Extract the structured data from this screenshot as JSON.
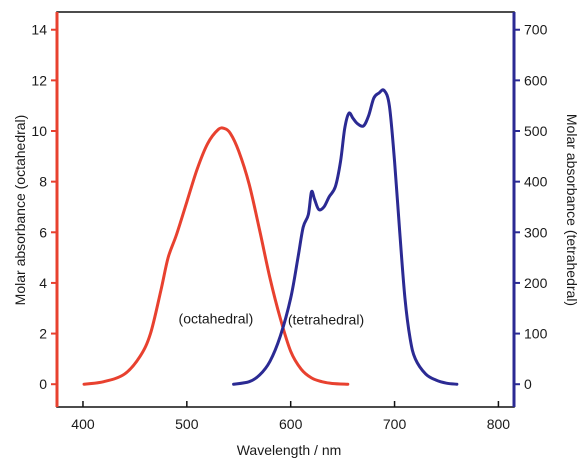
{
  "chart_data": {
    "type": "line",
    "title": "",
    "xlabel": "Wavelength / nm",
    "ylabel_left": "Molar absorbance (octahedral)",
    "ylabel_right": "Molar absorbance (tetrahedral)",
    "xlim": [
      375,
      815
    ],
    "ylim_left": [
      -0.9,
      14.7
    ],
    "ylim_right": [
      -45,
      735
    ],
    "x_ticks": [
      400,
      500,
      600,
      700,
      800
    ],
    "y_left_ticks": [
      0,
      2,
      4,
      6,
      8,
      10,
      12,
      14
    ],
    "y_right_ticks": [
      0,
      100,
      200,
      300,
      400,
      500,
      600,
      700
    ],
    "grid": false,
    "legend": "none",
    "colors": {
      "axis_left": "#e8412f",
      "axis_right": "#2b2a93",
      "frame": "#111111"
    },
    "annotations": [
      {
        "text": "(octahedral)",
        "x": 528,
        "y": 2.4,
        "axis": "left"
      },
      {
        "text": "(tetrahedral)",
        "x": 634,
        "y": 2.35,
        "axis": "left"
      }
    ],
    "series": [
      {
        "name": "octahedral",
        "axis": "left",
        "color": "#e8412f",
        "x": [
          401,
          420,
          440,
          455,
          465,
          475,
          482,
          490,
          500,
          510,
          520,
          530,
          536,
          542,
          550,
          560,
          570,
          580,
          590,
          600,
          610,
          620,
          630,
          640,
          655
        ],
        "y": [
          0.0,
          0.1,
          0.4,
          1.1,
          2.0,
          3.7,
          5.0,
          5.9,
          7.2,
          8.5,
          9.5,
          10.05,
          10.1,
          9.9,
          9.2,
          7.9,
          6.1,
          4.2,
          2.6,
          1.3,
          0.6,
          0.25,
          0.1,
          0.03,
          0.0
        ]
      },
      {
        "name": "tetrahedral",
        "axis": "right",
        "color": "#2b2a93",
        "x": [
          545,
          560,
          570,
          580,
          590,
          600,
          607,
          612,
          617,
          620,
          623,
          627,
          632,
          637,
          643,
          648,
          652,
          656,
          660,
          664,
          670,
          675,
          680,
          685,
          690,
          695,
          700,
          705,
          710,
          715,
          720,
          730,
          740,
          750,
          760
        ],
        "y": [
          0,
          5,
          18,
          45,
          95,
          170,
          250,
          310,
          335,
          380,
          365,
          345,
          350,
          370,
          390,
          440,
          505,
          535,
          525,
          515,
          510,
          530,
          565,
          575,
          580,
          550,
          440,
          300,
          170,
          90,
          50,
          20,
          8,
          2,
          0
        ]
      }
    ]
  }
}
